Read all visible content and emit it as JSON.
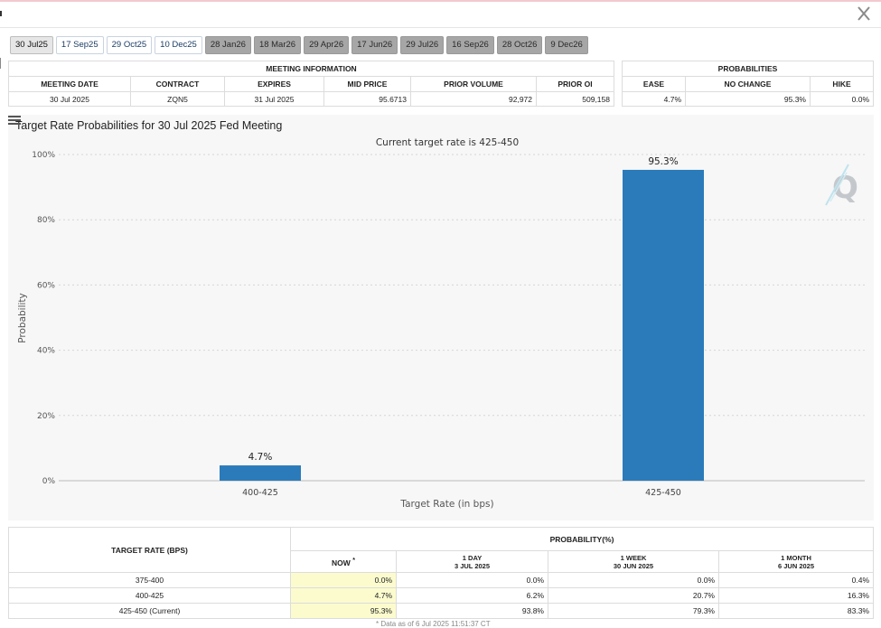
{
  "window": {
    "close_label": "X"
  },
  "tabs": [
    {
      "label": "30 Jul25",
      "state": "active"
    },
    {
      "label": "17 Sep25",
      "state": "normal"
    },
    {
      "label": "29 Oct25",
      "state": "normal"
    },
    {
      "label": "10 Dec25",
      "state": "normal"
    },
    {
      "label": "28 Jan26",
      "state": "future"
    },
    {
      "label": "18 Mar26",
      "state": "future"
    },
    {
      "label": "29 Apr26",
      "state": "future"
    },
    {
      "label": "17 Jun26",
      "state": "future"
    },
    {
      "label": "29 Jul26",
      "state": "future"
    },
    {
      "label": "16 Sep26",
      "state": "future"
    },
    {
      "label": "28 Oct26",
      "state": "future"
    },
    {
      "label": "9 Dec26",
      "state": "future"
    }
  ],
  "meeting_info": {
    "title": "MEETING INFORMATION",
    "headers": [
      "MEETING DATE",
      "CONTRACT",
      "EXPIRES",
      "MID PRICE",
      "PRIOR VOLUME",
      "PRIOR OI"
    ],
    "row": [
      "30 Jul 2025",
      "ZQN5",
      "31 Jul 2025",
      "95.6713",
      "92,972",
      "509,158"
    ]
  },
  "probabilities": {
    "title": "PROBABILITIES",
    "headers": [
      "EASE",
      "NO CHANGE",
      "HIKE"
    ],
    "row": [
      "4.7%",
      "95.3%",
      "0.0%"
    ]
  },
  "chart_data": {
    "type": "bar",
    "title": "Target Rate Probabilities for 30 Jul 2025 Fed Meeting",
    "subtitle": "Current target rate is 425-450",
    "categories": [
      "400-425",
      "425-450"
    ],
    "values": [
      4.7,
      95.3
    ],
    "data_labels": [
      "4.7%",
      "95.3%"
    ],
    "xlabel": "Target Rate (in bps)",
    "ylabel": "Probability",
    "ylim": [
      0,
      100
    ],
    "yticks": [
      0,
      20,
      40,
      60,
      80,
      100
    ],
    "ytick_labels": [
      "0%",
      "20%",
      "40%",
      "60%",
      "80%",
      "100%"
    ],
    "grid": true,
    "bar_color": "#2b7bba"
  },
  "history_table": {
    "target_header": "TARGET RATE (BPS)",
    "prob_header": "PROBABILITY(%)",
    "columns": [
      {
        "label": "NOW",
        "marker": "*",
        "sub": ""
      },
      {
        "label": "1 DAY",
        "sub": "3 JUL 2025"
      },
      {
        "label": "1 WEEK",
        "sub": "30 JUN 2025"
      },
      {
        "label": "1 MONTH",
        "sub": "6 JUN 2025"
      }
    ],
    "rows": [
      {
        "rate": "375-400",
        "values": [
          "0.0%",
          "0.0%",
          "0.0%",
          "0.4%"
        ]
      },
      {
        "rate": "400-425",
        "values": [
          "4.7%",
          "6.2%",
          "20.7%",
          "16.3%"
        ]
      },
      {
        "rate": "425-450 (Current)",
        "values": [
          "95.3%",
          "93.8%",
          "79.3%",
          "83.3%"
        ]
      }
    ],
    "footnote": "* Data as of 6 Jul 2025 11:51:37 CT"
  },
  "colors": {
    "accent": "#2b7bba",
    "now_highlight": "#fbfbce",
    "future_tab": "#a6a6a6"
  }
}
